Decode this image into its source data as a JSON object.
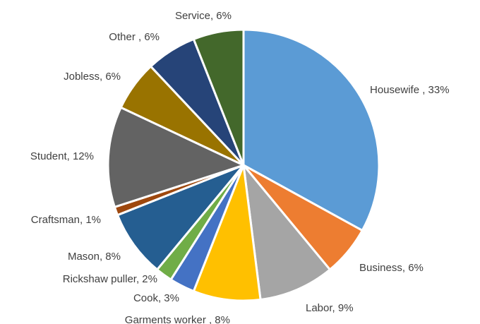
{
  "chart_data": {
    "type": "pie",
    "start_angle_deg": 0,
    "direction": "clockwise",
    "slices": [
      {
        "label": "Housewife ",
        "value": 33,
        "value_text": "33%",
        "color": "#5B9BD5"
      },
      {
        "label": "Business",
        "value": 6,
        "value_text": "6%",
        "color": "#ED7D31"
      },
      {
        "label": "Labor",
        "value": 9,
        "value_text": "9%",
        "color": "#A5A5A5"
      },
      {
        "label": "Garments worker ",
        "value": 8,
        "value_text": "8%",
        "color": "#FFC000"
      },
      {
        "label": "Cook",
        "value": 3,
        "value_text": "3%",
        "color": "#4472C4"
      },
      {
        "label": "Rickshaw puller",
        "value": 2,
        "value_text": "2%",
        "color": "#70AD47"
      },
      {
        "label": "Mason",
        "value": 8,
        "value_text": "8%",
        "color": "#255E91"
      },
      {
        "label": "Craftsman",
        "value": 1,
        "value_text": "1%",
        "color": "#9E480E"
      },
      {
        "label": "Student",
        "value": 12,
        "value_text": "12%",
        "color": "#636363"
      },
      {
        "label": "Jobless",
        "value": 6,
        "value_text": "6%",
        "color": "#997300"
      },
      {
        "label": "Other ",
        "value": 6,
        "value_text": "6%",
        "color": "#264478"
      },
      {
        "label": "Service",
        "value": 6,
        "value_text": "6%",
        "color": "#43682B"
      }
    ]
  }
}
